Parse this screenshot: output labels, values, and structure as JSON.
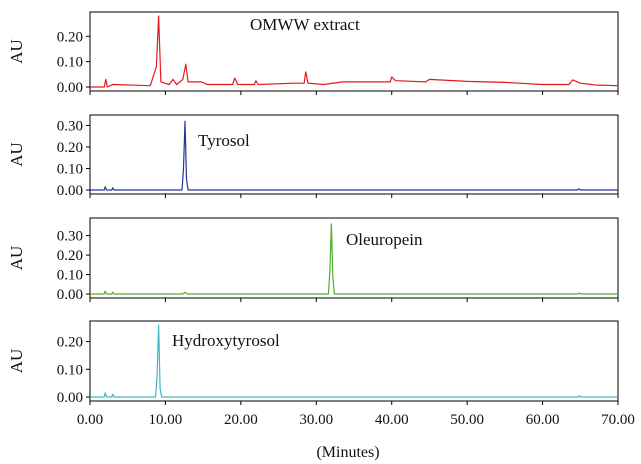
{
  "chart_data": {
    "type": "line",
    "xlabel": "(Minutes)",
    "xlim": [
      0,
      70
    ],
    "xticks": [
      "0.00",
      "10.00",
      "20.00",
      "30.00",
      "40.00",
      "50.00",
      "60.00",
      "70.00"
    ],
    "xtick_values": [
      0,
      10,
      20,
      30,
      40,
      50,
      60,
      70
    ],
    "panels": [
      {
        "name": "OMWW extract",
        "ylabel": "AU",
        "color": "#e31a1c",
        "ylim": [
          0,
          0.28
        ],
        "yticks": [
          0.0,
          0.1,
          0.2
        ],
        "ytick_labels": [
          "0.00",
          "0.10",
          "0.20"
        ],
        "points": [
          [
            0,
            0
          ],
          [
            1.9,
            0
          ],
          [
            2.1,
            0.03
          ],
          [
            2.3,
            0
          ],
          [
            3.0,
            0.01
          ],
          [
            8.0,
            0.005
          ],
          [
            8.8,
            0.08
          ],
          [
            9.1,
            0.28
          ],
          [
            9.4,
            0.02
          ],
          [
            10.5,
            0.01
          ],
          [
            11.0,
            0.03
          ],
          [
            11.5,
            0.01
          ],
          [
            12.3,
            0.03
          ],
          [
            12.7,
            0.09
          ],
          [
            13.0,
            0.02
          ],
          [
            14.8,
            0.02
          ],
          [
            15.5,
            0.01
          ],
          [
            18.9,
            0.01
          ],
          [
            19.2,
            0.035
          ],
          [
            19.6,
            0.01
          ],
          [
            21.8,
            0.01
          ],
          [
            22.0,
            0.025
          ],
          [
            22.3,
            0.01
          ],
          [
            27.0,
            0.015
          ],
          [
            28.4,
            0.015
          ],
          [
            28.6,
            0.06
          ],
          [
            28.9,
            0.015
          ],
          [
            31.0,
            0.01
          ],
          [
            33.5,
            0.02
          ],
          [
            38.0,
            0.02
          ],
          [
            39.8,
            0.02
          ],
          [
            40.0,
            0.04
          ],
          [
            40.5,
            0.025
          ],
          [
            44.5,
            0.02
          ],
          [
            45.0,
            0.03
          ],
          [
            50.0,
            0.022
          ],
          [
            55.0,
            0.018
          ],
          [
            60.0,
            0.01
          ],
          [
            63.5,
            0.01
          ],
          [
            64.0,
            0.028
          ],
          [
            65.0,
            0.015
          ],
          [
            67.0,
            0.008
          ],
          [
            70.0,
            0.005
          ]
        ]
      },
      {
        "name": "Tyrosol",
        "ylabel": "AU",
        "color": "#253494",
        "ylim": [
          0,
          0.33
        ],
        "yticks": [
          0.0,
          0.1,
          0.2,
          0.3
        ],
        "ytick_labels": [
          "0.00",
          "0.10",
          "0.20",
          "0.30"
        ],
        "points": [
          [
            0,
            0
          ],
          [
            1.9,
            0
          ],
          [
            2.0,
            0.015
          ],
          [
            2.2,
            0
          ],
          [
            2.9,
            0
          ],
          [
            3.0,
            0.01
          ],
          [
            3.2,
            0
          ],
          [
            12.2,
            0
          ],
          [
            12.4,
            0.1
          ],
          [
            12.6,
            0.32
          ],
          [
            12.8,
            0.05
          ],
          [
            13.0,
            0
          ],
          [
            64.6,
            0
          ],
          [
            64.8,
            0.005
          ],
          [
            65.0,
            0
          ],
          [
            70,
            0
          ]
        ]
      },
      {
        "name": "Oleuropein",
        "ylabel": "AU",
        "color": "#4daf2c",
        "ylim": [
          0,
          0.37
        ],
        "yticks": [
          0.0,
          0.1,
          0.2,
          0.3
        ],
        "ytick_labels": [
          "0.00",
          "0.10",
          "0.20",
          "0.30"
        ],
        "points": [
          [
            0,
            0
          ],
          [
            1.9,
            0
          ],
          [
            2.0,
            0.015
          ],
          [
            2.2,
            0
          ],
          [
            2.9,
            0
          ],
          [
            3.0,
            0.01
          ],
          [
            3.2,
            0
          ],
          [
            12.3,
            0
          ],
          [
            12.6,
            0.008
          ],
          [
            12.9,
            0
          ],
          [
            31.6,
            0
          ],
          [
            31.8,
            0.12
          ],
          [
            32.0,
            0.36
          ],
          [
            32.2,
            0.08
          ],
          [
            32.4,
            0
          ],
          [
            64.7,
            0
          ],
          [
            64.9,
            0.005
          ],
          [
            65.1,
            0
          ],
          [
            70,
            0
          ]
        ]
      },
      {
        "name": "Hydroxytyrosol",
        "ylabel": "AU",
        "color": "#41b6c4",
        "ylim": [
          0,
          0.26
        ],
        "yticks": [
          0.0,
          0.1,
          0.2
        ],
        "ytick_labels": [
          "0.00",
          "0.10",
          "0.20"
        ],
        "points": [
          [
            0,
            0
          ],
          [
            1.9,
            0
          ],
          [
            2.0,
            0.015
          ],
          [
            2.2,
            0
          ],
          [
            2.9,
            0
          ],
          [
            3.0,
            0.01
          ],
          [
            3.2,
            0
          ],
          [
            8.7,
            0
          ],
          [
            8.9,
            0.08
          ],
          [
            9.1,
            0.26
          ],
          [
            9.3,
            0.03
          ],
          [
            9.5,
            0
          ],
          [
            64.7,
            0
          ],
          [
            64.9,
            0.005
          ],
          [
            65.1,
            0
          ],
          [
            70,
            0
          ]
        ]
      }
    ]
  }
}
